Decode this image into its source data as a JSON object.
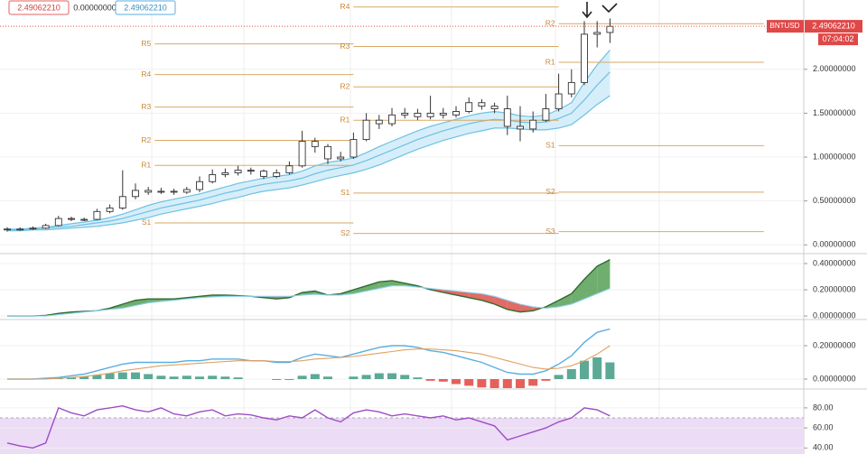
{
  "chart_data": [
    {
      "type": "candlestick",
      "legend_values": [
        {
          "value": 2.4906221,
          "label": "2.49062210"
        },
        {
          "value": 0,
          "label": "0.00000000"
        },
        {
          "value": 2.4906221,
          "label": "2.49062210"
        }
      ],
      "price_label": {
        "symbol": "BNTUSD",
        "value": 2.4906221,
        "label": "2.49062210",
        "countdown": "07:04:02"
      },
      "open": [
        0.17,
        0.18,
        0.18,
        0.19,
        0.22,
        0.3,
        0.29,
        0.29,
        0.38,
        0.42,
        0.55,
        0.62,
        0.6,
        0.61,
        0.6,
        0.63,
        0.72,
        0.8,
        0.82,
        0.85,
        0.84,
        0.78,
        0.82,
        0.9,
        1.18,
        1.12,
        0.98,
        1.0,
        1.2,
        1.42,
        1.38,
        1.48,
        1.5,
        1.46,
        1.5,
        1.48,
        1.52,
        1.62,
        1.58,
        1.55,
        1.35,
        1.32,
        1.42,
        1.55,
        1.72,
        1.85,
        2.4,
        2.42
      ],
      "high": [
        0.2,
        0.2,
        0.21,
        0.24,
        0.33,
        0.32,
        0.31,
        0.41,
        0.46,
        0.85,
        0.7,
        0.66,
        0.65,
        0.64,
        0.66,
        0.78,
        0.86,
        0.87,
        0.9,
        0.88,
        0.86,
        0.86,
        0.95,
        1.3,
        1.22,
        1.15,
        1.06,
        1.28,
        1.5,
        1.48,
        1.56,
        1.56,
        1.55,
        1.7,
        1.56,
        1.58,
        1.68,
        1.66,
        1.62,
        1.7,
        1.58,
        1.52,
        1.72,
        1.95,
        2.0,
        2.55,
        2.55,
        2.58
      ],
      "low": [
        0.15,
        0.16,
        0.17,
        0.18,
        0.21,
        0.27,
        0.27,
        0.28,
        0.36,
        0.4,
        0.52,
        0.57,
        0.58,
        0.57,
        0.58,
        0.6,
        0.7,
        0.77,
        0.79,
        0.8,
        0.75,
        0.76,
        0.8,
        0.88,
        1.05,
        0.92,
        0.95,
        0.98,
        1.18,
        1.32,
        1.35,
        1.44,
        1.42,
        1.43,
        1.44,
        1.45,
        1.5,
        1.54,
        1.5,
        1.25,
        1.18,
        1.28,
        1.4,
        1.52,
        1.68,
        1.82,
        2.25,
        2.3
      ],
      "close": [
        0.18,
        0.18,
        0.19,
        0.22,
        0.3,
        0.29,
        0.29,
        0.38,
        0.42,
        0.55,
        0.62,
        0.6,
        0.61,
        0.6,
        0.63,
        0.72,
        0.8,
        0.82,
        0.85,
        0.84,
        0.78,
        0.82,
        0.9,
        1.18,
        1.12,
        0.98,
        1.0,
        1.2,
        1.42,
        1.38,
        1.48,
        1.5,
        1.46,
        1.5,
        1.48,
        1.52,
        1.62,
        1.58,
        1.55,
        1.35,
        1.32,
        1.42,
        1.55,
        1.72,
        1.85,
        2.4,
        2.42,
        2.49
      ],
      "series": [
        {
          "color": "#6ec1e4",
          "values": [
            0.18,
            0.18,
            0.19,
            0.2,
            0.22,
            0.24,
            0.26,
            0.28,
            0.31,
            0.35,
            0.4,
            0.45,
            0.49,
            0.52,
            0.55,
            0.58,
            0.62,
            0.66,
            0.7,
            0.73,
            0.76,
            0.78,
            0.8,
            0.84,
            0.9,
            0.94,
            0.96,
            0.99,
            1.05,
            1.12,
            1.18,
            1.24,
            1.3,
            1.35,
            1.39,
            1.43,
            1.47,
            1.5,
            1.52,
            1.5,
            1.47,
            1.46,
            1.48,
            1.54,
            1.62,
            1.85,
            2.05,
            2.22
          ]
        },
        {
          "color": "#6ec1e4",
          "values": [
            0.17,
            0.17,
            0.18,
            0.19,
            0.2,
            0.21,
            0.23,
            0.25,
            0.27,
            0.3,
            0.34,
            0.38,
            0.42,
            0.45,
            0.48,
            0.51,
            0.55,
            0.59,
            0.62,
            0.66,
            0.69,
            0.71,
            0.73,
            0.76,
            0.81,
            0.85,
            0.88,
            0.91,
            0.96,
            1.02,
            1.08,
            1.14,
            1.2,
            1.25,
            1.3,
            1.34,
            1.38,
            1.41,
            1.43,
            1.42,
            1.4,
            1.39,
            1.4,
            1.44,
            1.5,
            1.65,
            1.82,
            1.97
          ]
        },
        {
          "color": "#6ec1e4",
          "values": [
            0.16,
            0.16,
            0.17,
            0.17,
            0.18,
            0.19,
            0.2,
            0.21,
            0.23,
            0.25,
            0.28,
            0.31,
            0.35,
            0.38,
            0.41,
            0.44,
            0.47,
            0.51,
            0.54,
            0.58,
            0.61,
            0.63,
            0.65,
            0.68,
            0.72,
            0.76,
            0.79,
            0.82,
            0.86,
            0.91,
            0.97,
            1.03,
            1.09,
            1.14,
            1.19,
            1.23,
            1.27,
            1.3,
            1.33,
            1.33,
            1.32,
            1.31,
            1.31,
            1.33,
            1.37,
            1.48,
            1.6,
            1.7
          ]
        }
      ],
      "band_fill": "#d6eef9",
      "pivots": [
        {
          "span": [
            11.5,
            27
          ],
          "levels": [
            {
              "label": "R5",
              "value": 2.29
            },
            {
              "label": "R4",
              "value": 1.94
            },
            {
              "label": "R3",
              "value": 1.57
            },
            {
              "label": "R2",
              "value": 1.19
            },
            {
              "label": "R1",
              "value": 0.905
            },
            {
              "label": "S1",
              "value": 0.25
            }
          ]
        },
        {
          "span": [
            27,
            43
          ],
          "levels": [
            {
              "label": "R4",
              "value": 2.71
            },
            {
              "label": "R3",
              "value": 2.26
            },
            {
              "label": "R2",
              "value": 1.8
            },
            {
              "label": "R1",
              "value": 1.42
            },
            {
              "label": "S1",
              "value": 0.59
            },
            {
              "label": "S2",
              "value": 0.13
            }
          ]
        },
        {
          "span": [
            43,
            59
          ],
          "levels": [
            {
              "label": "R2",
              "value": 2.52
            },
            {
              "label": "R1",
              "value": 2.08
            },
            {
              "label": "S1",
              "value": 1.13
            },
            {
              "label": "S2",
              "value": 0.6
            },
            {
              "label": "S3",
              "value": 0.15
            }
          ]
        }
      ],
      "ylim": [
        -0.09,
        2.79
      ],
      "yticks": [
        {
          "value": 0,
          "label": "0.00000000"
        },
        {
          "value": 0.5,
          "label": "0.50000000"
        },
        {
          "value": 1,
          "label": "1.00000000"
        },
        {
          "value": 1.5,
          "label": "1.50000000"
        },
        {
          "value": 2,
          "label": "2.00000000"
        }
      ]
    },
    {
      "type": "line",
      "series": [
        {
          "color": "#2f6b2f",
          "values": [
            0,
            0,
            0,
            0.005,
            0.02,
            0.03,
            0.035,
            0.04,
            0.06,
            0.09,
            0.12,
            0.13,
            0.13,
            0.13,
            0.14,
            0.15,
            0.16,
            0.16,
            0.155,
            0.15,
            0.14,
            0.13,
            0.14,
            0.18,
            0.19,
            0.16,
            0.17,
            0.2,
            0.23,
            0.26,
            0.27,
            0.25,
            0.23,
            0.2,
            0.18,
            0.16,
            0.14,
            0.12,
            0.09,
            0.05,
            0.03,
            0.04,
            0.07,
            0.12,
            0.17,
            0.28,
            0.38,
            0.43
          ]
        },
        {
          "color": "#8fd3ee",
          "values": [
            0,
            0,
            0,
            0,
            0.01,
            0.02,
            0.03,
            0.04,
            0.05,
            0.06,
            0.08,
            0.1,
            0.11,
            0.12,
            0.13,
            0.14,
            0.145,
            0.15,
            0.15,
            0.15,
            0.15,
            0.15,
            0.15,
            0.16,
            0.165,
            0.16,
            0.16,
            0.17,
            0.19,
            0.21,
            0.23,
            0.23,
            0.22,
            0.21,
            0.2,
            0.19,
            0.18,
            0.17,
            0.15,
            0.12,
            0.09,
            0.07,
            0.06,
            0.07,
            0.09,
            0.13,
            0.17,
            0.21
          ]
        }
      ],
      "fill_colors": [
        "#4c9a4c",
        "#d9463e"
      ],
      "ylim": [
        -0.02,
        0.462
      ],
      "yticks": [
        {
          "value": 0,
          "label": "0.00000000"
        },
        {
          "value": 0.2,
          "label": "0.20000000"
        },
        {
          "value": 0.4,
          "label": "0.40000000"
        }
      ]
    },
    {
      "type": "line",
      "series": [
        {
          "color": "#5aaee0",
          "values": [
            0,
            0,
            0,
            0.005,
            0.01,
            0.02,
            0.03,
            0.05,
            0.07,
            0.09,
            0.1,
            0.1,
            0.1,
            0.1,
            0.11,
            0.11,
            0.12,
            0.12,
            0.12,
            0.11,
            0.11,
            0.1,
            0.1,
            0.13,
            0.15,
            0.14,
            0.13,
            0.15,
            0.17,
            0.19,
            0.2,
            0.2,
            0.19,
            0.17,
            0.16,
            0.14,
            0.12,
            0.1,
            0.07,
            0.04,
            0.03,
            0.03,
            0.05,
            0.09,
            0.14,
            0.22,
            0.28,
            0.3
          ]
        },
        {
          "color": "#e0a060",
          "values": [
            0,
            0,
            0,
            0,
            0.005,
            0.01,
            0.015,
            0.025,
            0.035,
            0.05,
            0.06,
            0.07,
            0.08,
            0.085,
            0.09,
            0.095,
            0.1,
            0.105,
            0.11,
            0.11,
            0.11,
            0.105,
            0.105,
            0.11,
            0.12,
            0.125,
            0.13,
            0.135,
            0.145,
            0.155,
            0.165,
            0.175,
            0.18,
            0.18,
            0.175,
            0.17,
            0.16,
            0.15,
            0.13,
            0.11,
            0.09,
            0.07,
            0.06,
            0.065,
            0.08,
            0.11,
            0.15,
            0.2
          ]
        },
        {
          "type": "bar",
          "colors": [
            "#3f9a84",
            "#e0443e"
          ],
          "values": [
            0,
            0,
            0,
            0.005,
            0.005,
            0.01,
            0.015,
            0.025,
            0.035,
            0.04,
            0.04,
            0.03,
            0.02,
            0.015,
            0.02,
            0.015,
            0.02,
            0.015,
            0.01,
            0,
            0,
            -0.005,
            -0.005,
            0.02,
            0.03,
            0.015,
            0,
            0.015,
            0.025,
            0.035,
            0.035,
            0.025,
            0.01,
            -0.01,
            -0.015,
            -0.03,
            -0.04,
            -0.05,
            -0.06,
            -0.07,
            -0.06,
            -0.04,
            -0.01,
            0.025,
            0.06,
            0.11,
            0.13,
            0.1
          ]
        }
      ],
      "ylim": [
        -0.054,
        0.346
      ],
      "yticks": [
        {
          "value": 0,
          "label": "0.00000000"
        },
        {
          "value": 0.2,
          "label": "0.20000000"
        }
      ]
    },
    {
      "type": "line",
      "series": [
        {
          "color": "#9c4fc4",
          "values": [
            45,
            42,
            40,
            45,
            80,
            75,
            72,
            78,
            80,
            82,
            78,
            76,
            80,
            74,
            72,
            76,
            78,
            72,
            74,
            73,
            70,
            68,
            72,
            70,
            78,
            70,
            66,
            75,
            78,
            76,
            72,
            74,
            72,
            70,
            72,
            68,
            70,
            66,
            62,
            48,
            52,
            56,
            60,
            66,
            70,
            80,
            78,
            72
          ]
        }
      ],
      "band": [
        30,
        70
      ],
      "band_fill": "#ecdcf6",
      "ylim": [
        34,
        97
      ],
      "yticks": [
        {
          "value": 40,
          "label": "40.00"
        },
        {
          "value": 60,
          "label": "60.00"
        },
        {
          "value": 80,
          "label": "80.00"
        }
      ]
    }
  ]
}
